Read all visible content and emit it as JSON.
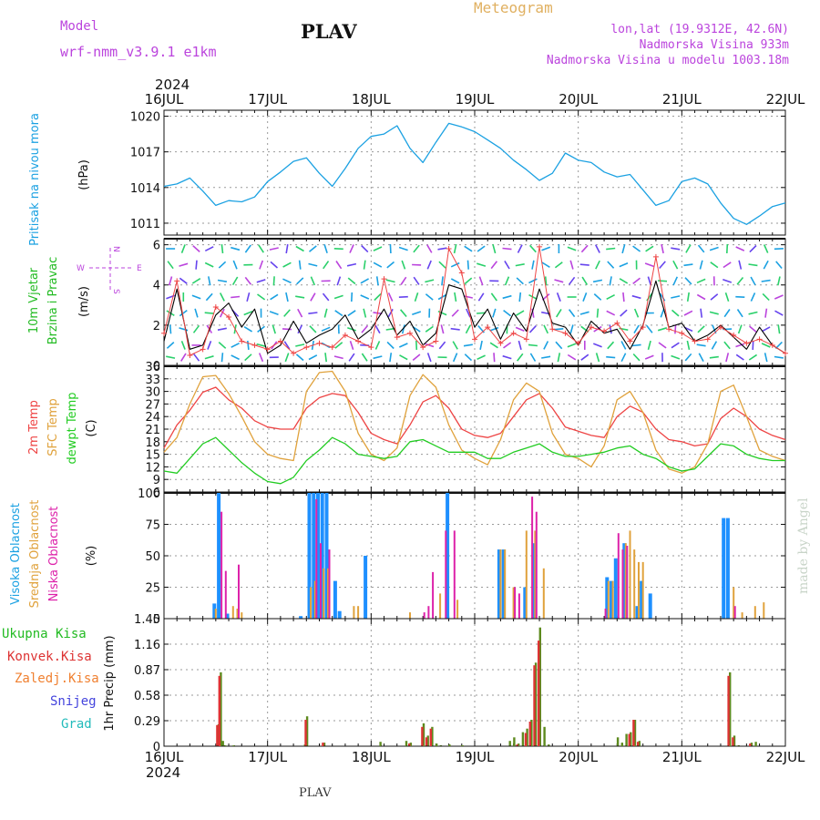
{
  "header": {
    "model_label": "Model",
    "model_name": "wrf-nmm_v3.9.1  e1km",
    "station_title": "PLAV",
    "product_title": "Meteogram",
    "coords": "lon,lat (19.9312E, 42.6N)",
    "elevation": "Nadmorska Visina 933m",
    "model_elevation": "Nadmorska Visina u modelu 1003.18m"
  },
  "footer": {
    "station": "PLAV",
    "credit": "made by Angel"
  },
  "colors": {
    "pressure": "#1ba1e2",
    "temp2m": "#ee4444",
    "sfc_temp": "#e0a23c",
    "dewpt": "#22cc22",
    "high_cloud": "#1e90ff",
    "mid_cloud": "#e0a23c",
    "low_cloud": "#dd22aa",
    "total_precip": "#5d8a1e",
    "conv_precip": "#dd3333",
    "stratiform_precip": "#f08030",
    "snow": "#4444dd",
    "graupel": "#22bbbb",
    "wind_label": "#22bb22",
    "wind_dir_label": "#bb44dd"
  },
  "chart_data": [
    {
      "type": "line",
      "panel": "pressure",
      "ylabel_lines": [
        "Pritisak na nivou mora",
        "(hPa)"
      ],
      "ylim": [
        1010,
        1020.5
      ],
      "yticks": [
        1011,
        1014,
        1017,
        1020
      ],
      "x_axis": {
        "top_year": "2024",
        "bottom_year": "2024",
        "tick_labels": [
          "16JUL",
          "17JUL",
          "18JUL",
          "19JUL",
          "20JUL",
          "21JUL",
          "22JUL"
        ],
        "range_hours": [
          0,
          144
        ]
      },
      "grid": true,
      "series": [
        {
          "x_hours": [
            0,
            3,
            6,
            9,
            12,
            15,
            18,
            21,
            24,
            27,
            30,
            33,
            36,
            39,
            42,
            45,
            48,
            51,
            54,
            57,
            60,
            63,
            66,
            69,
            72,
            75,
            78,
            81,
            84,
            87,
            90,
            93,
            96,
            99,
            102,
            105,
            108,
            111,
            114,
            117,
            120,
            123,
            126,
            129,
            132,
            135,
            138,
            141,
            144
          ],
          "values": [
            1014.1,
            1014.3,
            1014.8,
            1013.7,
            1012.5,
            1012.9,
            1012.8,
            1013.2,
            1014.5,
            1015.3,
            1016.2,
            1016.5,
            1015.2,
            1014.1,
            1015.6,
            1017.3,
            1018.3,
            1018.5,
            1019.2,
            1017.3,
            1016.1,
            1017.8,
            1019.4,
            1019.1,
            1018.7,
            1018.0,
            1017.3,
            1016.3,
            1015.5,
            1014.6,
            1015.2,
            1016.9,
            1016.3,
            1016.1,
            1015.3,
            1014.9,
            1015.1,
            1013.8,
            1012.5,
            1012.9,
            1014.5,
            1014.8,
            1014.3,
            1012.7,
            1011.4,
            1010.9,
            1011.6,
            1012.4,
            1012.7
          ]
        }
      ]
    },
    {
      "type": "line",
      "panel": "wind",
      "ylabel_lines": [
        "10m Vjetar",
        "Brzina i Pravac",
        "(m/s)"
      ],
      "direction_legend": [
        "W",
        "E",
        "N",
        "S"
      ],
      "ylim": [
        0,
        6.3
      ],
      "yticks": [
        0,
        2,
        4,
        6
      ],
      "grid": true,
      "series": [
        {
          "name": "speed",
          "x_hours": [
            0,
            3,
            6,
            9,
            12,
            15,
            18,
            21,
            24,
            27,
            30,
            33,
            36,
            39,
            42,
            45,
            48,
            51,
            54,
            57,
            60,
            63,
            66,
            69,
            72,
            75,
            78,
            81,
            84,
            87,
            90,
            93,
            96,
            99,
            102,
            105,
            108,
            111,
            114,
            117,
            120,
            123,
            126,
            129,
            132,
            135,
            138,
            141,
            144
          ],
          "values": [
            1.2,
            3.8,
            0.8,
            1.0,
            2.5,
            3.1,
            1.9,
            2.8,
            0.6,
            1.0,
            2.2,
            1.1,
            1.5,
            1.8,
            2.5,
            1.3,
            1.8,
            2.8,
            1.5,
            2.2,
            1.0,
            1.6,
            4.0,
            3.8,
            1.9,
            2.8,
            1.3,
            2.6,
            1.7,
            3.8,
            2.1,
            1.9,
            1.0,
            2.2,
            1.6,
            1.8,
            0.8,
            2.0,
            4.2,
            1.9,
            2.1,
            1.2,
            1.5,
            2.0,
            1.4,
            0.8,
            1.9,
            1.0,
            0.6
          ]
        },
        {
          "name": "gust",
          "x_hours": [
            0,
            3,
            6,
            9,
            12,
            15,
            18,
            21,
            24,
            27,
            30,
            33,
            36,
            39,
            42,
            45,
            48,
            51,
            54,
            57,
            60,
            63,
            66,
            69,
            72,
            75,
            78,
            81,
            84,
            87,
            90,
            93,
            96,
            99,
            102,
            105,
            108,
            111,
            114,
            117,
            120,
            123,
            126,
            129,
            132,
            135,
            138,
            141,
            144
          ],
          "values": [
            1.6,
            4.2,
            0.5,
            0.8,
            2.9,
            2.4,
            1.2,
            1.0,
            0.8,
            1.2,
            0.6,
            0.9,
            1.1,
            0.9,
            1.5,
            1.2,
            0.9,
            4.3,
            1.4,
            1.6,
            0.9,
            1.2,
            5.8,
            4.6,
            1.3,
            1.9,
            1.1,
            1.6,
            1.3,
            5.9,
            1.8,
            1.6,
            1.1,
            1.9,
            1.7,
            2.1,
            1.2,
            1.9,
            5.4,
            1.8,
            1.6,
            1.2,
            1.3,
            1.9,
            1.5,
            1.1,
            1.3,
            1.0,
            0.6
          ]
        }
      ]
    },
    {
      "type": "line",
      "panel": "temperature",
      "ylabel_lines": [
        "2m Temp",
        "SFC Temp",
        "dewpt Temp",
        "(C)"
      ],
      "ylim": [
        6,
        36
      ],
      "yticks": [
        6,
        9,
        12,
        15,
        18,
        21,
        24,
        27,
        30,
        33,
        36
      ],
      "grid": true,
      "x_hours": [
        0,
        3,
        6,
        9,
        12,
        15,
        18,
        21,
        24,
        27,
        30,
        33,
        36,
        39,
        42,
        45,
        48,
        51,
        54,
        57,
        60,
        63,
        66,
        69,
        72,
        75,
        78,
        81,
        84,
        87,
        90,
        93,
        96,
        99,
        102,
        105,
        108,
        111,
        114,
        117,
        120,
        123,
        126,
        129,
        132,
        135,
        138,
        141,
        144
      ],
      "series": [
        {
          "name": "2m Temp",
          "values": [
            16.5,
            22.0,
            25.5,
            29.8,
            31.0,
            28.0,
            26.0,
            23.0,
            21.5,
            21.0,
            21.0,
            26.0,
            28.5,
            29.5,
            29.0,
            25.0,
            20.0,
            18.5,
            17.5,
            22.0,
            27.5,
            29.0,
            26.0,
            21.0,
            19.5,
            19.0,
            20.0,
            24.0,
            28.0,
            29.5,
            26.0,
            21.5,
            20.5,
            19.5,
            19.0,
            24.0,
            26.5,
            25.0,
            21.0,
            18.5,
            18.0,
            17.0,
            17.5,
            23.5,
            26.0,
            24.0,
            21.0,
            19.5,
            18.5
          ]
        },
        {
          "name": "SFC Temp",
          "values": [
            15.5,
            19.0,
            27.0,
            33.5,
            33.8,
            29.5,
            24.0,
            18.0,
            15.0,
            14.0,
            13.5,
            30.0,
            34.5,
            34.8,
            30.0,
            20.0,
            15.0,
            13.5,
            16.5,
            29.0,
            34.0,
            31.0,
            22.0,
            16.0,
            14.0,
            12.5,
            18.5,
            28.0,
            32.0,
            30.0,
            20.0,
            15.0,
            14.0,
            12.0,
            17.0,
            28.0,
            30.0,
            25.0,
            16.0,
            11.5,
            10.5,
            12.0,
            17.5,
            30.0,
            31.5,
            24.0,
            16.0,
            14.5,
            13.5
          ]
        },
        {
          "name": "dewpt Temp",
          "values": [
            11.0,
            10.5,
            14.0,
            17.5,
            19.0,
            16.0,
            13.0,
            10.5,
            8.5,
            8.0,
            9.5,
            13.5,
            16.0,
            19.0,
            17.5,
            15.0,
            14.5,
            14.0,
            14.5,
            18.0,
            18.5,
            17.0,
            15.5,
            15.5,
            15.5,
            14.0,
            14.0,
            15.5,
            16.5,
            17.5,
            15.5,
            14.5,
            14.5,
            15.0,
            15.5,
            16.5,
            17.0,
            15.0,
            14.0,
            12.0,
            11.0,
            11.5,
            14.5,
            17.5,
            17.0,
            15.0,
            14.0,
            13.5,
            13.5
          ]
        }
      ]
    },
    {
      "type": "bar",
      "panel": "cloud",
      "ylabel_lines": [
        "Visoka Oblacnost",
        "Srednja Oblacnost",
        "Niska Oblacnost",
        "(%)"
      ],
      "ylim": [
        0,
        100
      ],
      "yticks": [
        0,
        25,
        50,
        75,
        100
      ],
      "grid": true,
      "series": [
        {
          "name": "Visoka Oblacnost",
          "x_hours": [
            12,
            13,
            15,
            32,
            34,
            35,
            36,
            37,
            38,
            40,
            41,
            47,
            66,
            78,
            79,
            84,
            86,
            103,
            104,
            105,
            107,
            110,
            111,
            113,
            130,
            131
          ],
          "values": [
            12,
            100,
            4,
            2,
            100,
            100,
            100,
            100,
            100,
            30,
            6,
            50,
            100,
            55,
            55,
            25,
            60,
            33,
            30,
            48,
            60,
            10,
            30,
            20,
            80,
            80
          ]
        },
        {
          "name": "Srednja Oblacnost",
          "x_hours": [
            12,
            16,
            17,
            18,
            34,
            35,
            37,
            38,
            44,
            45,
            57,
            64,
            68,
            78,
            79,
            81,
            84,
            86,
            88,
            103,
            104,
            107,
            108,
            109,
            110,
            111,
            132,
            134,
            137,
            139
          ],
          "values": [
            8,
            10,
            8,
            5,
            25,
            30,
            40,
            40,
            10,
            10,
            5,
            20,
            15,
            55,
            55,
            25,
            70,
            70,
            40,
            30,
            30,
            60,
            70,
            55,
            45,
            45,
            25,
            5,
            10,
            13
          ]
        },
        {
          "name": "Niska Oblacnost",
          "x_hours": [
            13,
            14,
            17,
            35,
            36,
            38,
            60,
            61,
            62,
            65,
            67,
            81,
            82,
            85,
            86,
            102,
            105,
            106,
            107,
            132
          ],
          "values": [
            85,
            38,
            43,
            95,
            60,
            55,
            5,
            10,
            37,
            70,
            70,
            25,
            20,
            97,
            85,
            8,
            68,
            55,
            58,
            10
          ]
        }
      ]
    },
    {
      "type": "bar",
      "panel": "precipitation",
      "ylabel_lines": [
        "1hr Precip (mm)"
      ],
      "legend": [
        "Ukupna Kisa",
        "Konvek.Kisa",
        "Zaledj.Kisa",
        "Snijeg",
        "Grad"
      ],
      "ylim": [
        0,
        1.45
      ],
      "yticks": [
        0,
        0.29,
        0.58,
        0.87,
        1.16,
        1.45
      ],
      "ytick_labels": [
        "0",
        "0.29",
        "0.58",
        "0.87",
        "1.16",
        "1.45"
      ],
      "grid": true,
      "series": [
        {
          "name": "Ukupna Kisa",
          "x_hours": [
            12.5,
            13,
            13.5,
            14,
            16,
            32.5,
            33,
            37,
            50,
            56,
            57,
            60,
            61,
            62,
            63,
            64,
            66,
            69,
            80,
            81,
            82,
            83,
            84,
            85,
            86,
            87,
            88,
            89,
            105,
            106,
            107,
            108,
            109,
            110,
            131,
            132,
            133,
            136,
            137
          ],
          "values": [
            0.25,
            0.84,
            0.06,
            0.01,
            0.01,
            0.02,
            0.34,
            0.04,
            0.05,
            0.06,
            0.04,
            0.26,
            0.12,
            0.22,
            0.03,
            0.01,
            0.02,
            0.01,
            0.06,
            0.1,
            0.03,
            0.16,
            0.2,
            0.3,
            0.95,
            1.35,
            0.22,
            0.02,
            0.1,
            0.04,
            0.14,
            0.16,
            0.3,
            0.06,
            0.84,
            0.12,
            0.01,
            0.04,
            0.05
          ]
        },
        {
          "name": "Konvek.Kisa",
          "x_hours": [
            12.5,
            13,
            33,
            37,
            57,
            60,
            61,
            62,
            82,
            84,
            85,
            86,
            87,
            108,
            109,
            110,
            131,
            132,
            136
          ],
          "values": [
            0.24,
            0.8,
            0.3,
            0.04,
            0.03,
            0.22,
            0.1,
            0.2,
            0.02,
            0.15,
            0.28,
            0.92,
            1.2,
            0.14,
            0.3,
            0.05,
            0.8,
            0.1,
            0.03
          ]
        }
      ]
    }
  ]
}
